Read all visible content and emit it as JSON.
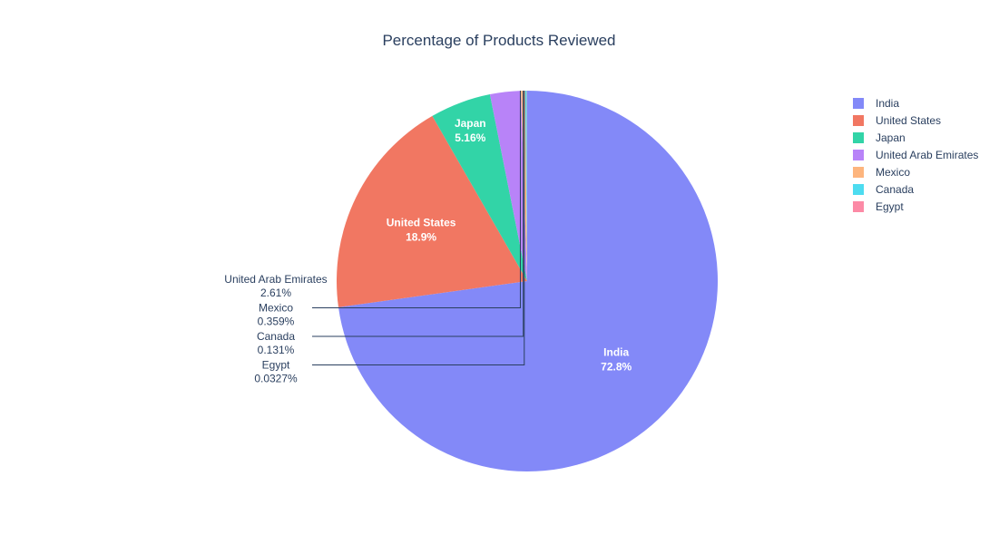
{
  "chart_data": {
    "type": "pie",
    "title": "Percentage of Products Reviewed",
    "categories": [
      "India",
      "United States",
      "Japan",
      "United Arab Emirates",
      "Mexico",
      "Canada",
      "Egypt"
    ],
    "values": [
      72.8,
      18.9,
      5.16,
      2.61,
      0.359,
      0.131,
      0.0327
    ],
    "value_labels": [
      "72.8%",
      "18.9%",
      "5.16%",
      "2.61%",
      "0.359%",
      "0.131%",
      "0.0327%"
    ],
    "label_position": [
      "inside",
      "inside",
      "inside",
      "outside",
      "outside",
      "outside",
      "outside"
    ],
    "colors": [
      "#8389f8",
      "#f17762",
      "#32d4a7",
      "#b883f8",
      "#fdb57e",
      "#4ddcf0",
      "#fc8aa6"
    ],
    "start_angle_deg": 0,
    "direction": "clockwise",
    "legend": {
      "placement": "top-right",
      "entries": [
        "India",
        "United States",
        "Japan",
        "United Arab Emirates",
        "Mexico",
        "Canada",
        "Egypt"
      ]
    }
  }
}
